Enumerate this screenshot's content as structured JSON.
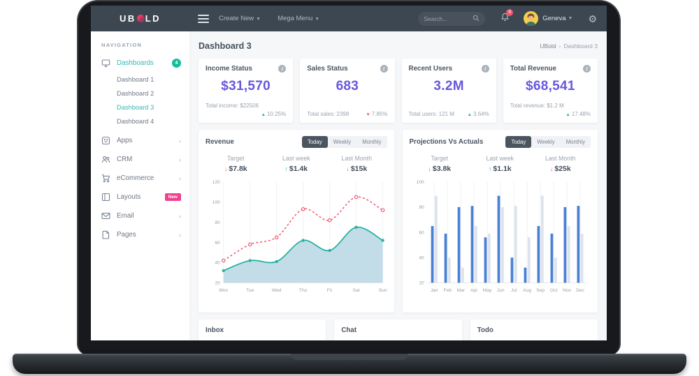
{
  "topbar": {
    "logo_pre": "UB",
    "logo_post": "LD",
    "menus": [
      {
        "label": "Create New"
      },
      {
        "label": "Mega Menu"
      }
    ],
    "search_placeholder": "Search...",
    "notification_count": "9",
    "user_name": "Geneva"
  },
  "sidebar": {
    "section_label": "NAVIGATION",
    "dashboards": {
      "label": "Dashboards",
      "badge": "4"
    },
    "sub_items": [
      {
        "label": "Dashboard 1",
        "active": false
      },
      {
        "label": "Dashboard 2",
        "active": false
      },
      {
        "label": "Dashboard 3",
        "active": true
      },
      {
        "label": "Dashboard 4",
        "active": false
      }
    ],
    "items": [
      {
        "label": "Apps",
        "chevron": true
      },
      {
        "label": "CRM",
        "chevron": true
      },
      {
        "label": "eCommerce",
        "chevron": true
      },
      {
        "label": "Layouts",
        "badge": "New"
      },
      {
        "label": "Email",
        "chevron": true
      },
      {
        "label": "Pages",
        "chevron": true
      }
    ]
  },
  "page": {
    "title": "Dashboard 3",
    "breadcrumb_root": "UBold",
    "breadcrumb_sep": "›",
    "breadcrumb_current": "Dashboard 3"
  },
  "stat_cards": [
    {
      "title": "Income Status",
      "value": "$31,570",
      "footer": "Total income: $22506",
      "change": "10.25%",
      "direction": "up",
      "two_line": true
    },
    {
      "title": "Sales Status",
      "value": "683",
      "footer": "Total sales: 2398",
      "change": "7.85%",
      "direction": "down",
      "two_line": false
    },
    {
      "title": "Recent Users",
      "value": "3.2M",
      "footer": "Total users: 121 M",
      "change": "3.64%",
      "direction": "up",
      "two_line": false
    },
    {
      "title": "Total Revenue",
      "value": "$68,541",
      "footer": "Total revenue: $1.2 M",
      "change": "17.48%",
      "direction": "up",
      "two_line": true
    }
  ],
  "charts": [
    {
      "title": "Revenue",
      "tabs": [
        "Today",
        "Weekly",
        "Monthly"
      ],
      "active_tab": "Today",
      "stats": [
        {
          "label": "Target",
          "value": "$7.8k",
          "direction": "down"
        },
        {
          "label": "Last week",
          "value": "$1.4k",
          "direction": "up"
        },
        {
          "label": "Last Month",
          "value": "$15k",
          "direction": "down"
        }
      ],
      "chart_data": {
        "type": "area-line",
        "categories": [
          "Mon",
          "Tue",
          "Wed",
          "Thu",
          "Fri",
          "Sat",
          "Sun"
        ],
        "series": [
          {
            "name": "actual",
            "style": "area",
            "color": "#26b3a2",
            "fill": "#c3dde8",
            "values": [
              32,
              42,
              41,
              62,
              52,
              75,
              62
            ]
          },
          {
            "name": "projection",
            "style": "dashed",
            "color": "#f1556c",
            "values": [
              42,
              58,
              65,
              93,
              82,
              105,
              92
            ]
          }
        ],
        "ylim": [
          20,
          120
        ],
        "yticks": [
          20,
          40,
          60,
          80,
          100,
          120
        ],
        "grid": "vertical"
      }
    },
    {
      "title": "Projections Vs Actuals",
      "tabs": [
        "Today",
        "Weekly",
        "Monthly"
      ],
      "active_tab": "Today",
      "stats": [
        {
          "label": "Target",
          "value": "$3.8k",
          "direction": "down"
        },
        {
          "label": "Last week",
          "value": "$1.1k",
          "direction": "up"
        },
        {
          "label": "Last Month",
          "value": "$25k",
          "direction": "down"
        }
      ],
      "chart_data": {
        "type": "bar",
        "categories": [
          "Jan",
          "Feb",
          "Mar",
          "Apr",
          "May",
          "Jun",
          "Jul",
          "Aug",
          "Sep",
          "Oct",
          "Nov",
          "Dec"
        ],
        "series": [
          {
            "name": "actual",
            "color": "#4a81d4",
            "values": [
              65,
              59,
              80,
              81,
              56,
              89,
              40,
              32,
              65,
              59,
              80,
              81
            ]
          },
          {
            "name": "projection",
            "color": "#dde3ed",
            "values": [
              89,
              40,
              32,
              65,
              59,
              80,
              81,
              56,
              89,
              40,
              65,
              59
            ]
          }
        ],
        "ylim": [
          20,
          100
        ],
        "yticks": [
          20,
          40,
          60,
          80,
          100
        ],
        "grid": "vertical"
      }
    }
  ],
  "bottom_cards": [
    {
      "title": "Inbox"
    },
    {
      "title": "Chat"
    },
    {
      "title": "Todo"
    }
  ],
  "colors": {
    "primary": "#6658dd",
    "teal": "#26b3a2",
    "red": "#f1556c",
    "green": "#16be9a",
    "topbar": "#3c4752",
    "grid": "#eef1f4",
    "tick": "#98a2ac"
  }
}
